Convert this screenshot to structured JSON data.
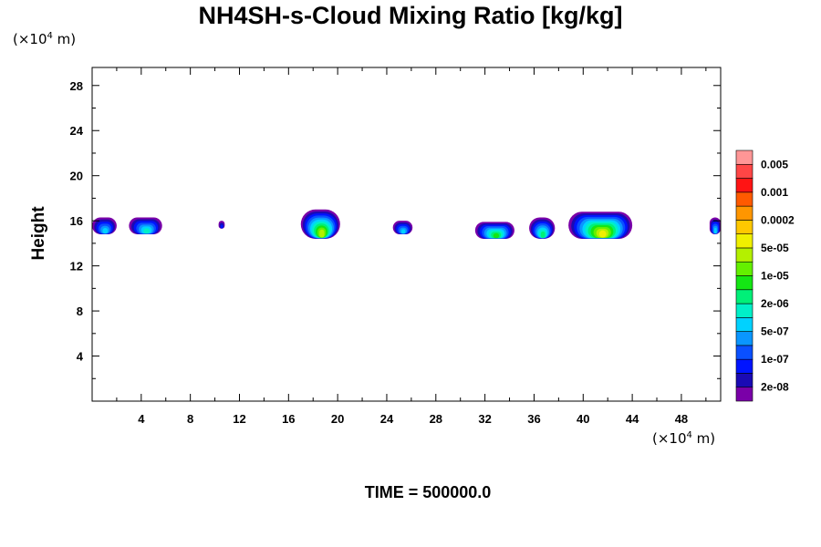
{
  "chart_data": {
    "type": "heatmap",
    "title": "NH4SH-s-Cloud Mixing Ratio [kg/kg]",
    "ylabel": "Height",
    "xlabel": "",
    "x_unit": {
      "prefix": "(×10",
      "exp": "4",
      "suffix": " m)"
    },
    "y_unit": {
      "prefix": "(×10",
      "exp": "4",
      "suffix": " m)"
    },
    "footer": "TIME = 500000.0",
    "xlim": [
      0,
      51.2
    ],
    "ylim": [
      0,
      29.6
    ],
    "x_ticks": [
      4,
      8,
      12,
      16,
      20,
      24,
      28,
      32,
      36,
      40,
      44,
      48
    ],
    "y_ticks": [
      4,
      8,
      12,
      16,
      20,
      24,
      28
    ],
    "colorbar": {
      "colors": [
        "#7a00a8",
        "#1a0ab4",
        "#0014ff",
        "#0a50ff",
        "#0a96ff",
        "#00d2ff",
        "#00f0c8",
        "#00f078",
        "#14e614",
        "#64f000",
        "#b4f000",
        "#f0f000",
        "#ffc800",
        "#ff9600",
        "#ff5a00",
        "#ff1414",
        "#ff4646",
        "#ff9696"
      ],
      "labels": [
        "2e-08",
        "1e-07",
        "5e-07",
        "2e-06",
        "1e-05",
        "5e-05",
        "0.0002",
        "0.001",
        "0.005"
      ]
    },
    "clouds": [
      {
        "x0": 0.0,
        "x1": 2.0,
        "base": 14.8,
        "top": 16.3,
        "peak_level": 5
      },
      {
        "x0": 3.0,
        "x1": 5.7,
        "base": 14.8,
        "top": 16.3,
        "peak_level": 6
      },
      {
        "x0": 10.3,
        "x1": 10.8,
        "base": 15.3,
        "top": 16.0,
        "peak_level": 2
      },
      {
        "x0": 17.0,
        "x1": 20.2,
        "base": 14.4,
        "top": 17.0,
        "peak_level": 10
      },
      {
        "x0": 24.5,
        "x1": 26.1,
        "base": 14.8,
        "top": 16.0,
        "peak_level": 5
      },
      {
        "x0": 31.2,
        "x1": 34.4,
        "base": 14.4,
        "top": 15.9,
        "peak_level": 8
      },
      {
        "x0": 35.6,
        "x1": 37.7,
        "base": 14.4,
        "top": 16.3,
        "peak_level": 7
      },
      {
        "x0": 38.8,
        "x1": 44.0,
        "base": 14.4,
        "top": 16.8,
        "peak_level": 11
      },
      {
        "x0": 50.3,
        "x1": 51.2,
        "base": 14.8,
        "top": 16.3,
        "peak_level": 5
      }
    ]
  }
}
